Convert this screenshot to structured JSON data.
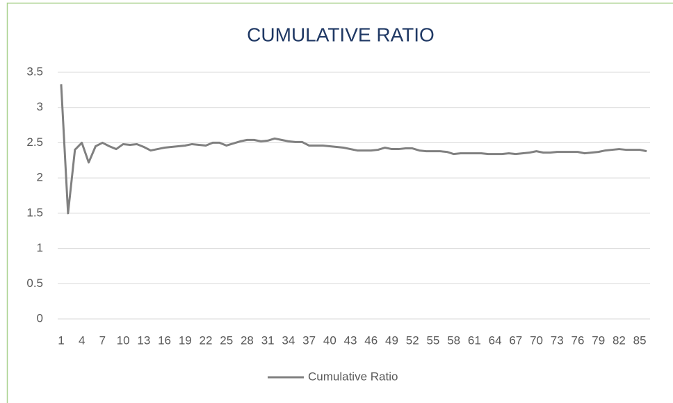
{
  "chart_data": {
    "type": "line",
    "title": "CUMULATIVE RATIO",
    "categories": [
      1,
      null,
      null,
      4,
      null,
      null,
      7,
      null,
      null,
      10,
      null,
      null,
      13,
      null,
      null,
      16,
      null,
      null,
      19,
      null,
      null,
      22,
      null,
      null,
      25,
      null,
      null,
      28,
      null,
      null,
      31,
      null,
      null,
      34,
      null,
      null,
      37,
      null,
      null,
      40,
      null,
      null,
      43,
      null,
      null,
      46,
      null,
      null,
      49,
      null,
      null,
      52,
      null,
      null,
      55,
      null,
      null,
      58,
      null,
      null,
      61,
      null,
      null,
      64,
      null,
      null,
      67,
      null,
      null,
      70,
      null,
      null,
      73,
      null,
      null,
      76,
      null,
      null,
      79,
      null,
      null,
      82,
      null,
      null,
      85,
      null
    ],
    "series": [
      {
        "name": "Cumulative Ratio",
        "color": "#808080",
        "values": [
          3.33,
          1.5,
          2.4,
          2.5,
          2.22,
          2.45,
          2.5,
          2.45,
          2.41,
          2.48,
          2.47,
          2.48,
          2.44,
          2.39,
          2.41,
          2.43,
          2.44,
          2.45,
          2.46,
          2.48,
          2.47,
          2.46,
          2.5,
          2.5,
          2.46,
          2.49,
          2.52,
          2.54,
          2.54,
          2.52,
          2.53,
          2.56,
          2.54,
          2.52,
          2.51,
          2.51,
          2.46,
          2.46,
          2.46,
          2.45,
          2.44,
          2.43,
          2.41,
          2.39,
          2.39,
          2.39,
          2.4,
          2.43,
          2.41,
          2.41,
          2.42,
          2.42,
          2.39,
          2.38,
          2.38,
          2.38,
          2.37,
          2.34,
          2.35,
          2.35,
          2.35,
          2.35,
          2.34,
          2.34,
          2.34,
          2.35,
          2.34,
          2.35,
          2.36,
          2.38,
          2.36,
          2.36,
          2.37,
          2.37,
          2.37,
          2.37,
          2.35,
          2.36,
          2.37,
          2.39,
          2.4,
          2.41,
          2.4,
          2.4,
          2.4,
          2.38
        ]
      }
    ],
    "ylim": [
      0,
      3.5
    ],
    "yticks": [
      0,
      0.5,
      1,
      1.5,
      2,
      2.5,
      3,
      3.5
    ],
    "grid": true,
    "legend": "bottom"
  }
}
